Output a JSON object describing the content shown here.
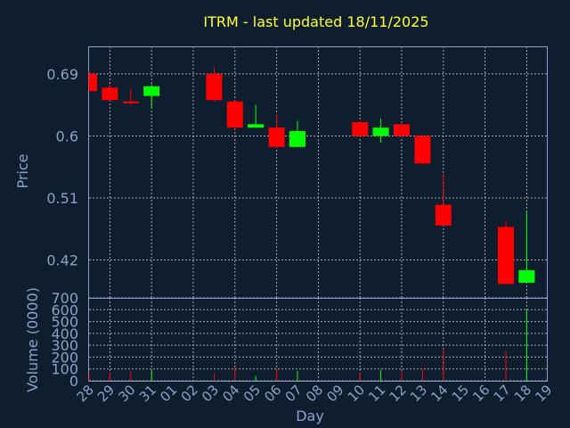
{
  "chart_data": {
    "type": "candlestick",
    "title": "ITRM - last updated 18/11/2025",
    "xlabel": "Day",
    "price_panel": {
      "ylabel": "Price",
      "yticks": [
        "0.42",
        "0.51",
        "0.6",
        "0.69"
      ],
      "ylim": [
        0.365,
        0.73
      ]
    },
    "volume_panel": {
      "ylabel": "Volume (0000)",
      "yticks": [
        "0",
        "100",
        "200",
        "300",
        "400",
        "500",
        "600",
        "700"
      ],
      "ylim": [
        0,
        700
      ]
    },
    "x_tick_labels": [
      "28",
      "29",
      "30",
      "31",
      "01",
      "02",
      "03",
      "04",
      "05",
      "06",
      "07",
      "08",
      "09",
      "10",
      "11",
      "12",
      "13",
      "14",
      "15",
      "16",
      "17",
      "18",
      "19"
    ],
    "candles": [
      {
        "day": "28",
        "open": 0.69,
        "high": 0.695,
        "low": 0.665,
        "close": 0.665,
        "volume": 60
      },
      {
        "day": "29",
        "open": 0.67,
        "high": 0.675,
        "low": 0.65,
        "close": 0.652,
        "volume": 70
      },
      {
        "day": "30",
        "open": 0.65,
        "high": 0.67,
        "low": 0.645,
        "close": 0.648,
        "volume": 80
      },
      {
        "day": "31",
        "open": 0.658,
        "high": 0.675,
        "low": 0.64,
        "close": 0.672,
        "volume": 90
      },
      {
        "day": "03",
        "open": 0.69,
        "high": 0.7,
        "low": 0.65,
        "close": 0.652,
        "volume": 60
      },
      {
        "day": "04",
        "open": 0.65,
        "high": 0.652,
        "low": 0.61,
        "close": 0.612,
        "volume": 110
      },
      {
        "day": "05",
        "open": 0.612,
        "high": 0.645,
        "low": 0.612,
        "close": 0.617,
        "volume": 40
      },
      {
        "day": "06",
        "open": 0.612,
        "high": 0.632,
        "low": 0.582,
        "close": 0.584,
        "volume": 100
      },
      {
        "day": "07",
        "open": 0.584,
        "high": 0.622,
        "low": 0.584,
        "close": 0.607,
        "volume": 80
      },
      {
        "day": "10",
        "open": 0.62,
        "high": 0.622,
        "low": 0.598,
        "close": 0.6,
        "volume": 70
      },
      {
        "day": "11",
        "open": 0.6,
        "high": 0.625,
        "low": 0.59,
        "close": 0.612,
        "volume": 90
      },
      {
        "day": "12",
        "open": 0.617,
        "high": 0.617,
        "low": 0.598,
        "close": 0.6,
        "volume": 80
      },
      {
        "day": "13",
        "open": 0.6,
        "high": 0.602,
        "low": 0.558,
        "close": 0.56,
        "volume": 100
      },
      {
        "day": "14",
        "open": 0.5,
        "high": 0.545,
        "low": 0.47,
        "close": 0.47,
        "volume": 270
      },
      {
        "day": "17",
        "open": 0.468,
        "high": 0.478,
        "low": 0.385,
        "close": 0.385,
        "volume": 250
      },
      {
        "day": "18",
        "open": 0.387,
        "high": 0.49,
        "low": 0.387,
        "close": 0.405,
        "volume": 600
      }
    ],
    "colors": {
      "background": "#0f1e2e",
      "up": "#00ff00",
      "down": "#ff0000",
      "title": "#ffff33",
      "axis_text": "#8aa2c8",
      "grid": "#c8c8c8"
    },
    "grid": true
  }
}
